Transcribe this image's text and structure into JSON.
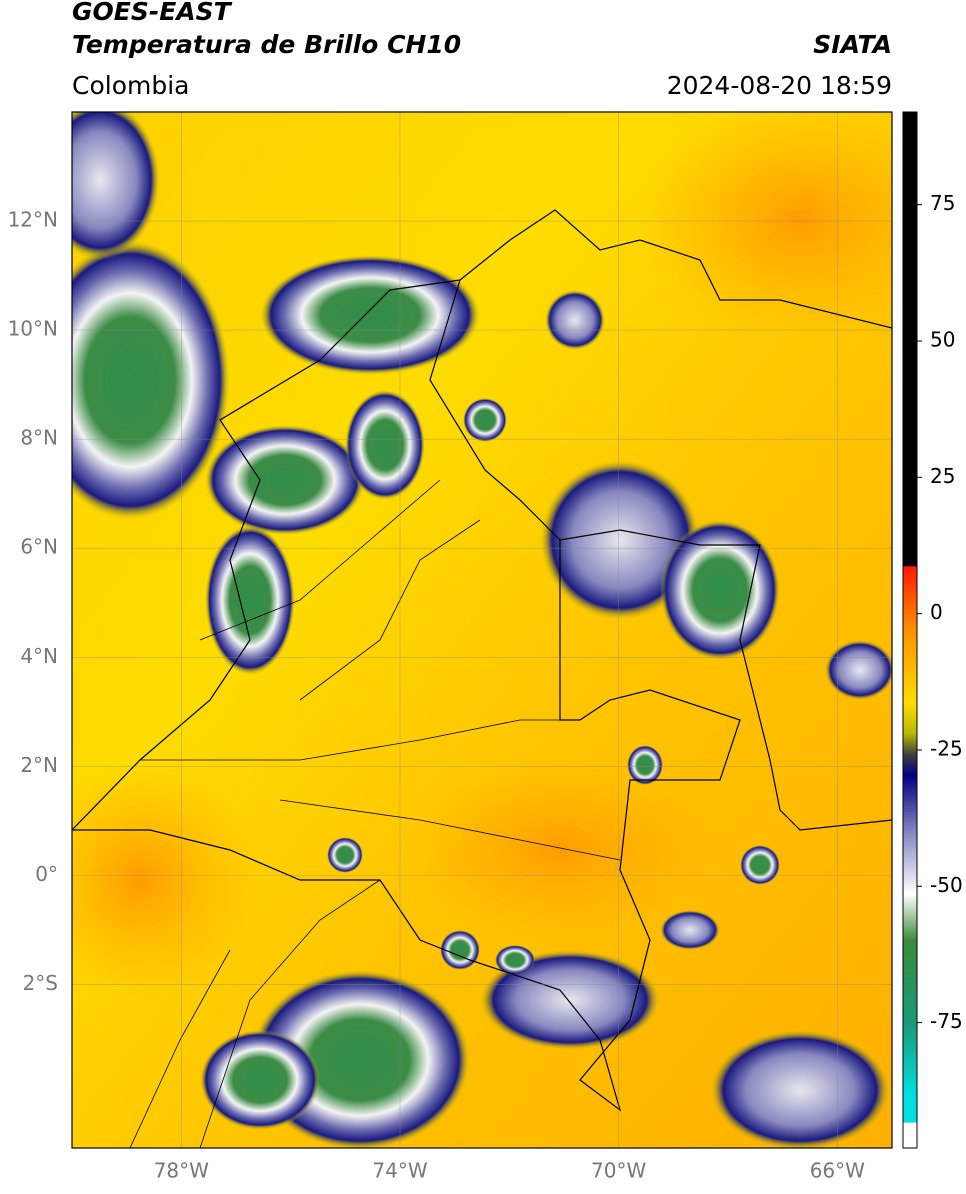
{
  "chart_data": {
    "type": "map",
    "title": "GOES-EAST",
    "subtitle": "Temperatura de Brillo CH10",
    "source": "SIATA",
    "region": "Colombia",
    "datetime": "2024-08-20 18:59",
    "xlim": [
      -80,
      -65
    ],
    "ylim": [
      -5,
      14
    ],
    "xticks": [
      {
        "value": -78,
        "label": "78°W"
      },
      {
        "value": -74,
        "label": "74°W"
      },
      {
        "value": -70,
        "label": "70°W"
      },
      {
        "value": -66,
        "label": "66°W"
      }
    ],
    "yticks": [
      {
        "value": 12,
        "label": "12°N"
      },
      {
        "value": 10,
        "label": "10°N"
      },
      {
        "value": 8,
        "label": "8°N"
      },
      {
        "value": 6,
        "label": "6°N"
      },
      {
        "value": 4,
        "label": "4°N"
      },
      {
        "value": 2,
        "label": "2°N"
      },
      {
        "value": 0,
        "label": "0°"
      },
      {
        "value": -2,
        "label": "2°S"
      }
    ],
    "grid": true,
    "colorbar": {
      "lim": [
        -98,
        92
      ],
      "ticks": [
        75,
        50,
        25,
        0,
        -25,
        -50,
        -75
      ]
    }
  }
}
